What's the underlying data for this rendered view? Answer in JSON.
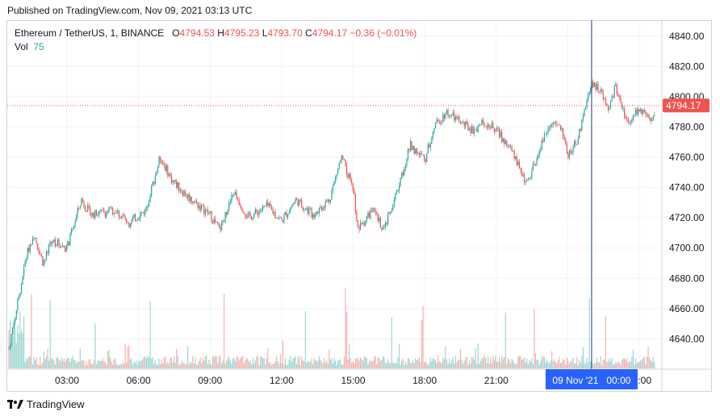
{
  "header": {
    "published": "Published on TradingView.com, Nov 09, 2021 03:13 UTC"
  },
  "legend": {
    "symbol": "Ethereum / TetherUS, 1, BINANCE",
    "o_label": "O",
    "o_value": "4794.53",
    "h_label": "H",
    "h_value": "4795.23",
    "l_label": "L",
    "l_value": "4793.70",
    "c_label": "C",
    "c_value": "4794.17",
    "change": "−0.36 (−0.01%)",
    "vol_label": "Vol",
    "vol_value": "75"
  },
  "footer": {
    "brand": "TradingView",
    "logo_icon": "tradingview-logo-icon"
  },
  "colors": {
    "up": "#26a69a",
    "down": "#ef5350",
    "crosshair": "#1e3a8a",
    "time_badge": "#2962ff",
    "grid": "#f0f3fa",
    "axis_text": "#131722"
  },
  "chart_data": {
    "type": "candlestick",
    "ylim": [
      4620,
      4850
    ],
    "y_ticks": [
      "4640.00",
      "4660.00",
      "4680.00",
      "4700.00",
      "4720.00",
      "4740.00",
      "4760.00",
      "4780.00",
      "4800.00",
      "4820.00",
      "4840.00"
    ],
    "x_ticks": [
      "03:00",
      "06:00",
      "09:00",
      "12:00",
      "15:00",
      "18:00",
      "21:00",
      "09 Nov '21",
      "03:00"
    ],
    "last_price": "4794.17",
    "crosshair_label": "09 Nov '21   00:00",
    "price_path": [
      [
        0,
        4670
      ],
      [
        0.3,
        4695
      ],
      [
        0.6,
        4710
      ],
      [
        1.0,
        4690
      ],
      [
        1.4,
        4705
      ],
      [
        2.0,
        4700
      ],
      [
        2.6,
        4732
      ],
      [
        3.0,
        4722
      ],
      [
        4.0,
        4725
      ],
      [
        4.6,
        4717
      ],
      [
        5.3,
        4725
      ],
      [
        5.9,
        4760
      ],
      [
        6.4,
        4745
      ],
      [
        7.0,
        4735
      ],
      [
        8.0,
        4722
      ],
      [
        8.4,
        4712
      ],
      [
        9.0,
        4737
      ],
      [
        9.6,
        4720
      ],
      [
        10.4,
        4728
      ],
      [
        11.0,
        4718
      ],
      [
        11.6,
        4732
      ],
      [
        12.3,
        4722
      ],
      [
        13.0,
        4732
      ],
      [
        13.5,
        4760
      ],
      [
        14.0,
        4740
      ],
      [
        14.2,
        4712
      ],
      [
        14.8,
        4725
      ],
      [
        15.3,
        4712
      ],
      [
        15.8,
        4735
      ],
      [
        16.4,
        4768
      ],
      [
        17.0,
        4758
      ],
      [
        17.4,
        4780
      ],
      [
        17.9,
        4790
      ],
      [
        18.5,
        4783
      ],
      [
        19.0,
        4778
      ],
      [
        19.5,
        4783
      ],
      [
        20.0,
        4778
      ],
      [
        20.6,
        4765
      ],
      [
        21.3,
        4742
      ],
      [
        21.6,
        4755
      ],
      [
        22.2,
        4782
      ],
      [
        22.7,
        4780
      ],
      [
        23.0,
        4762
      ],
      [
        23.4,
        4770
      ],
      [
        23.7,
        4792
      ],
      [
        24.0,
        4810
      ],
      [
        24.4,
        4803
      ],
      [
        24.7,
        4790
      ],
      [
        25.0,
        4807
      ],
      [
        25.5,
        4783
      ],
      [
        26.0,
        4792
      ],
      [
        26.5,
        4782
      ],
      [
        26.8,
        4795
      ],
      [
        27.4,
        4785
      ],
      [
        27.8,
        4788
      ],
      [
        28.2,
        4788
      ]
    ],
    "volume_spikes_hours": [
      0.5,
      1.3,
      3.2,
      5.5,
      8.6,
      12.0,
      13.7,
      15.6,
      16.9,
      20.4,
      21.6,
      23.9,
      24.6
    ]
  }
}
